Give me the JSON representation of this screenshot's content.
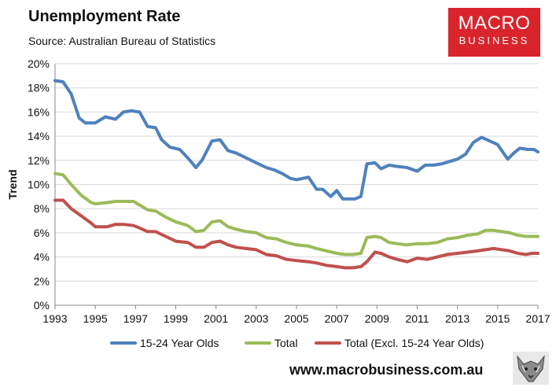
{
  "header": {
    "title": "Unemployment Rate",
    "subtitle": "Source: Australian Bureau of Statistics"
  },
  "logo": {
    "line1": "MACRO",
    "line2": "BUSINESS",
    "color": "#d9242b"
  },
  "footer": {
    "url": "www.macrobusiness.com.au"
  },
  "chart_data": {
    "type": "line",
    "title": "Unemployment Rate",
    "xlabel": "",
    "ylabel": "Trend",
    "xlim": [
      1993,
      2017
    ],
    "ylim": [
      0,
      20
    ],
    "x_ticks": [
      "1993",
      "1995",
      "1997",
      "1999",
      "2001",
      "2003",
      "2005",
      "2007",
      "2009",
      "2011",
      "2013",
      "2015",
      "2017"
    ],
    "y_ticks": [
      "0%",
      "2%",
      "4%",
      "6%",
      "8%",
      "10%",
      "12%",
      "14%",
      "16%",
      "18%",
      "20%"
    ],
    "grid": true,
    "legend_position": "bottom",
    "series": [
      {
        "name": "15-24 Year Olds",
        "color": "#4f81bd",
        "x": [
          1993.0,
          1993.4,
          1993.8,
          1994.2,
          1994.5,
          1995.0,
          1995.5,
          1996.0,
          1996.4,
          1996.8,
          1997.2,
          1997.6,
          1998.0,
          1998.3,
          1998.7,
          1999.2,
          1999.6,
          2000.0,
          2000.3,
          2000.8,
          2001.2,
          2001.6,
          2002.0,
          2002.5,
          2003.0,
          2003.5,
          2003.9,
          2004.3,
          2004.7,
          2005.0,
          2005.6,
          2006.0,
          2006.3,
          2006.7,
          2007.0,
          2007.3,
          2007.6,
          2007.9,
          2008.2,
          2008.5,
          2008.9,
          2009.2,
          2009.6,
          2010.0,
          2010.5,
          2011.0,
          2011.4,
          2011.8,
          2012.2,
          2012.6,
          2013.0,
          2013.4,
          2013.8,
          2014.2,
          2014.6,
          2015.0,
          2015.5,
          2015.8,
          2016.1,
          2016.5,
          2016.8,
          2017.0
        ],
        "values": [
          18.6,
          18.5,
          17.5,
          15.5,
          15.1,
          15.1,
          15.6,
          15.4,
          16.0,
          16.1,
          16.0,
          14.8,
          14.7,
          13.7,
          13.1,
          12.9,
          12.2,
          11.4,
          12.0,
          13.6,
          13.7,
          12.8,
          12.6,
          12.2,
          11.8,
          11.4,
          11.2,
          10.9,
          10.5,
          10.4,
          10.6,
          9.6,
          9.6,
          9.0,
          9.5,
          8.8,
          8.8,
          8.8,
          9.0,
          11.7,
          11.8,
          11.3,
          11.6,
          11.5,
          11.4,
          11.1,
          11.6,
          11.6,
          11.7,
          11.9,
          12.1,
          12.5,
          13.5,
          13.9,
          13.6,
          13.3,
          12.1,
          12.6,
          13.0,
          12.9,
          12.9,
          12.7
        ]
      },
      {
        "name": "Total",
        "color": "#9bbb59",
        "x": [
          1993.0,
          1993.4,
          1993.8,
          1994.3,
          1994.8,
          1995.0,
          1995.6,
          1996.0,
          1996.4,
          1996.9,
          1997.2,
          1997.6,
          1998.0,
          1998.5,
          1999.0,
          1999.6,
          2000.0,
          2000.4,
          2000.8,
          2001.2,
          2001.6,
          2002.0,
          2002.5,
          2003.0,
          2003.5,
          2004.0,
          2004.5,
          2005.0,
          2005.6,
          2006.0,
          2006.5,
          2007.0,
          2007.4,
          2007.8,
          2008.2,
          2008.5,
          2008.9,
          2009.2,
          2009.6,
          2010.0,
          2010.5,
          2011.0,
          2011.5,
          2012.0,
          2012.5,
          2013.0,
          2013.5,
          2014.0,
          2014.4,
          2014.8,
          2015.2,
          2015.6,
          2016.0,
          2016.4,
          2016.7,
          2017.0
        ],
        "values": [
          10.9,
          10.8,
          10.0,
          9.1,
          8.5,
          8.4,
          8.5,
          8.6,
          8.6,
          8.6,
          8.3,
          7.9,
          7.8,
          7.3,
          6.9,
          6.6,
          6.1,
          6.2,
          6.9,
          7.0,
          6.5,
          6.3,
          6.1,
          6.0,
          5.6,
          5.5,
          5.2,
          5.0,
          4.9,
          4.7,
          4.5,
          4.3,
          4.2,
          4.2,
          4.3,
          5.6,
          5.7,
          5.6,
          5.2,
          5.1,
          5.0,
          5.1,
          5.1,
          5.2,
          5.5,
          5.6,
          5.8,
          5.9,
          6.2,
          6.2,
          6.1,
          6.0,
          5.8,
          5.7,
          5.7,
          5.7
        ]
      },
      {
        "name": "Total (Excl. 15-24 Year Olds)",
        "color": "#c0504d",
        "x": [
          1993.0,
          1993.4,
          1993.8,
          1994.3,
          1994.8,
          1995.0,
          1995.6,
          1996.0,
          1996.4,
          1996.9,
          1997.2,
          1997.6,
          1998.0,
          1998.5,
          1999.0,
          1999.6,
          2000.0,
          2000.4,
          2000.8,
          2001.2,
          2001.6,
          2002.0,
          2002.5,
          2003.0,
          2003.5,
          2004.0,
          2004.5,
          2005.0,
          2005.6,
          2006.0,
          2006.5,
          2007.0,
          2007.4,
          2007.8,
          2008.2,
          2008.5,
          2008.9,
          2009.2,
          2009.6,
          2010.0,
          2010.5,
          2011.0,
          2011.5,
          2012.0,
          2012.5,
          2013.0,
          2013.5,
          2014.0,
          2014.4,
          2014.8,
          2015.2,
          2015.6,
          2016.0,
          2016.4,
          2016.7,
          2017.0
        ],
        "values": [
          8.7,
          8.7,
          8.0,
          7.4,
          6.8,
          6.5,
          6.5,
          6.7,
          6.7,
          6.6,
          6.4,
          6.1,
          6.1,
          5.7,
          5.3,
          5.2,
          4.8,
          4.8,
          5.2,
          5.3,
          5.0,
          4.8,
          4.7,
          4.6,
          4.2,
          4.1,
          3.8,
          3.7,
          3.6,
          3.5,
          3.3,
          3.2,
          3.1,
          3.1,
          3.2,
          3.6,
          4.4,
          4.3,
          4.0,
          3.8,
          3.6,
          3.9,
          3.8,
          4.0,
          4.2,
          4.3,
          4.4,
          4.5,
          4.6,
          4.7,
          4.6,
          4.5,
          4.3,
          4.2,
          4.3,
          4.3
        ]
      }
    ]
  }
}
